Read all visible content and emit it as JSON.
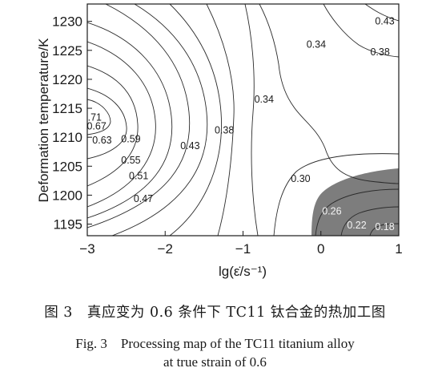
{
  "chart_data": {
    "type": "contour",
    "xlabel": "lg(ε̇/s⁻¹)",
    "ylabel": "Deformation temperature/K",
    "xlim": [
      -3,
      1
    ],
    "ylim": [
      1193,
      1233
    ],
    "x_ticks": [
      "−3",
      "−2",
      "−1",
      "0",
      "1"
    ],
    "y_ticks": [
      "1195",
      "1200",
      "1205",
      "1210",
      "1215",
      "1220",
      "1225",
      "1230"
    ],
    "contour_labels": [
      {
        "text": "0.43",
        "x": 0.82,
        "y": 1230.0
      },
      {
        "text": "0.34",
        "x": -0.06,
        "y": 1226.0
      },
      {
        "text": "0.38",
        "x": 0.76,
        "y": 1224.7
      },
      {
        "text": "0.34",
        "x": -0.73,
        "y": 1216.5
      },
      {
        "text": "0.71",
        "x": -2.94,
        "y": 1213.4
      },
      {
        "text": "0.38",
        "x": -1.24,
        "y": 1211.2
      },
      {
        "text": "0.67",
        "x": -2.88,
        "y": 1211.9
      },
      {
        "text": "0.63",
        "x": -2.81,
        "y": 1209.5
      },
      {
        "text": "0.59",
        "x": -2.44,
        "y": 1209.7
      },
      {
        "text": "0.43",
        "x": -1.68,
        "y": 1208.5
      },
      {
        "text": "0.55",
        "x": -2.44,
        "y": 1206.0
      },
      {
        "text": "0.51",
        "x": -2.34,
        "y": 1203.3
      },
      {
        "text": "0.30",
        "x": -0.26,
        "y": 1202.8
      },
      {
        "text": "0.47",
        "x": -2.28,
        "y": 1199.4
      },
      {
        "text": "0.26",
        "x": 0.14,
        "y": 1197.2
      },
      {
        "text": "0.22",
        "x": 0.46,
        "y": 1194.8
      },
      {
        "text": "0.18",
        "x": 0.82,
        "y": 1194.5
      }
    ],
    "instability_region_color": "#7d7d7d",
    "grid": false
  },
  "caption": {
    "cn": "图 3　真应变为 0.6 条件下 TC11 钛合金的热加工图",
    "en_line1": "Fig. 3　Processing map of the TC11 titanium alloy",
    "en_line2": "at true strain of 0.6"
  }
}
